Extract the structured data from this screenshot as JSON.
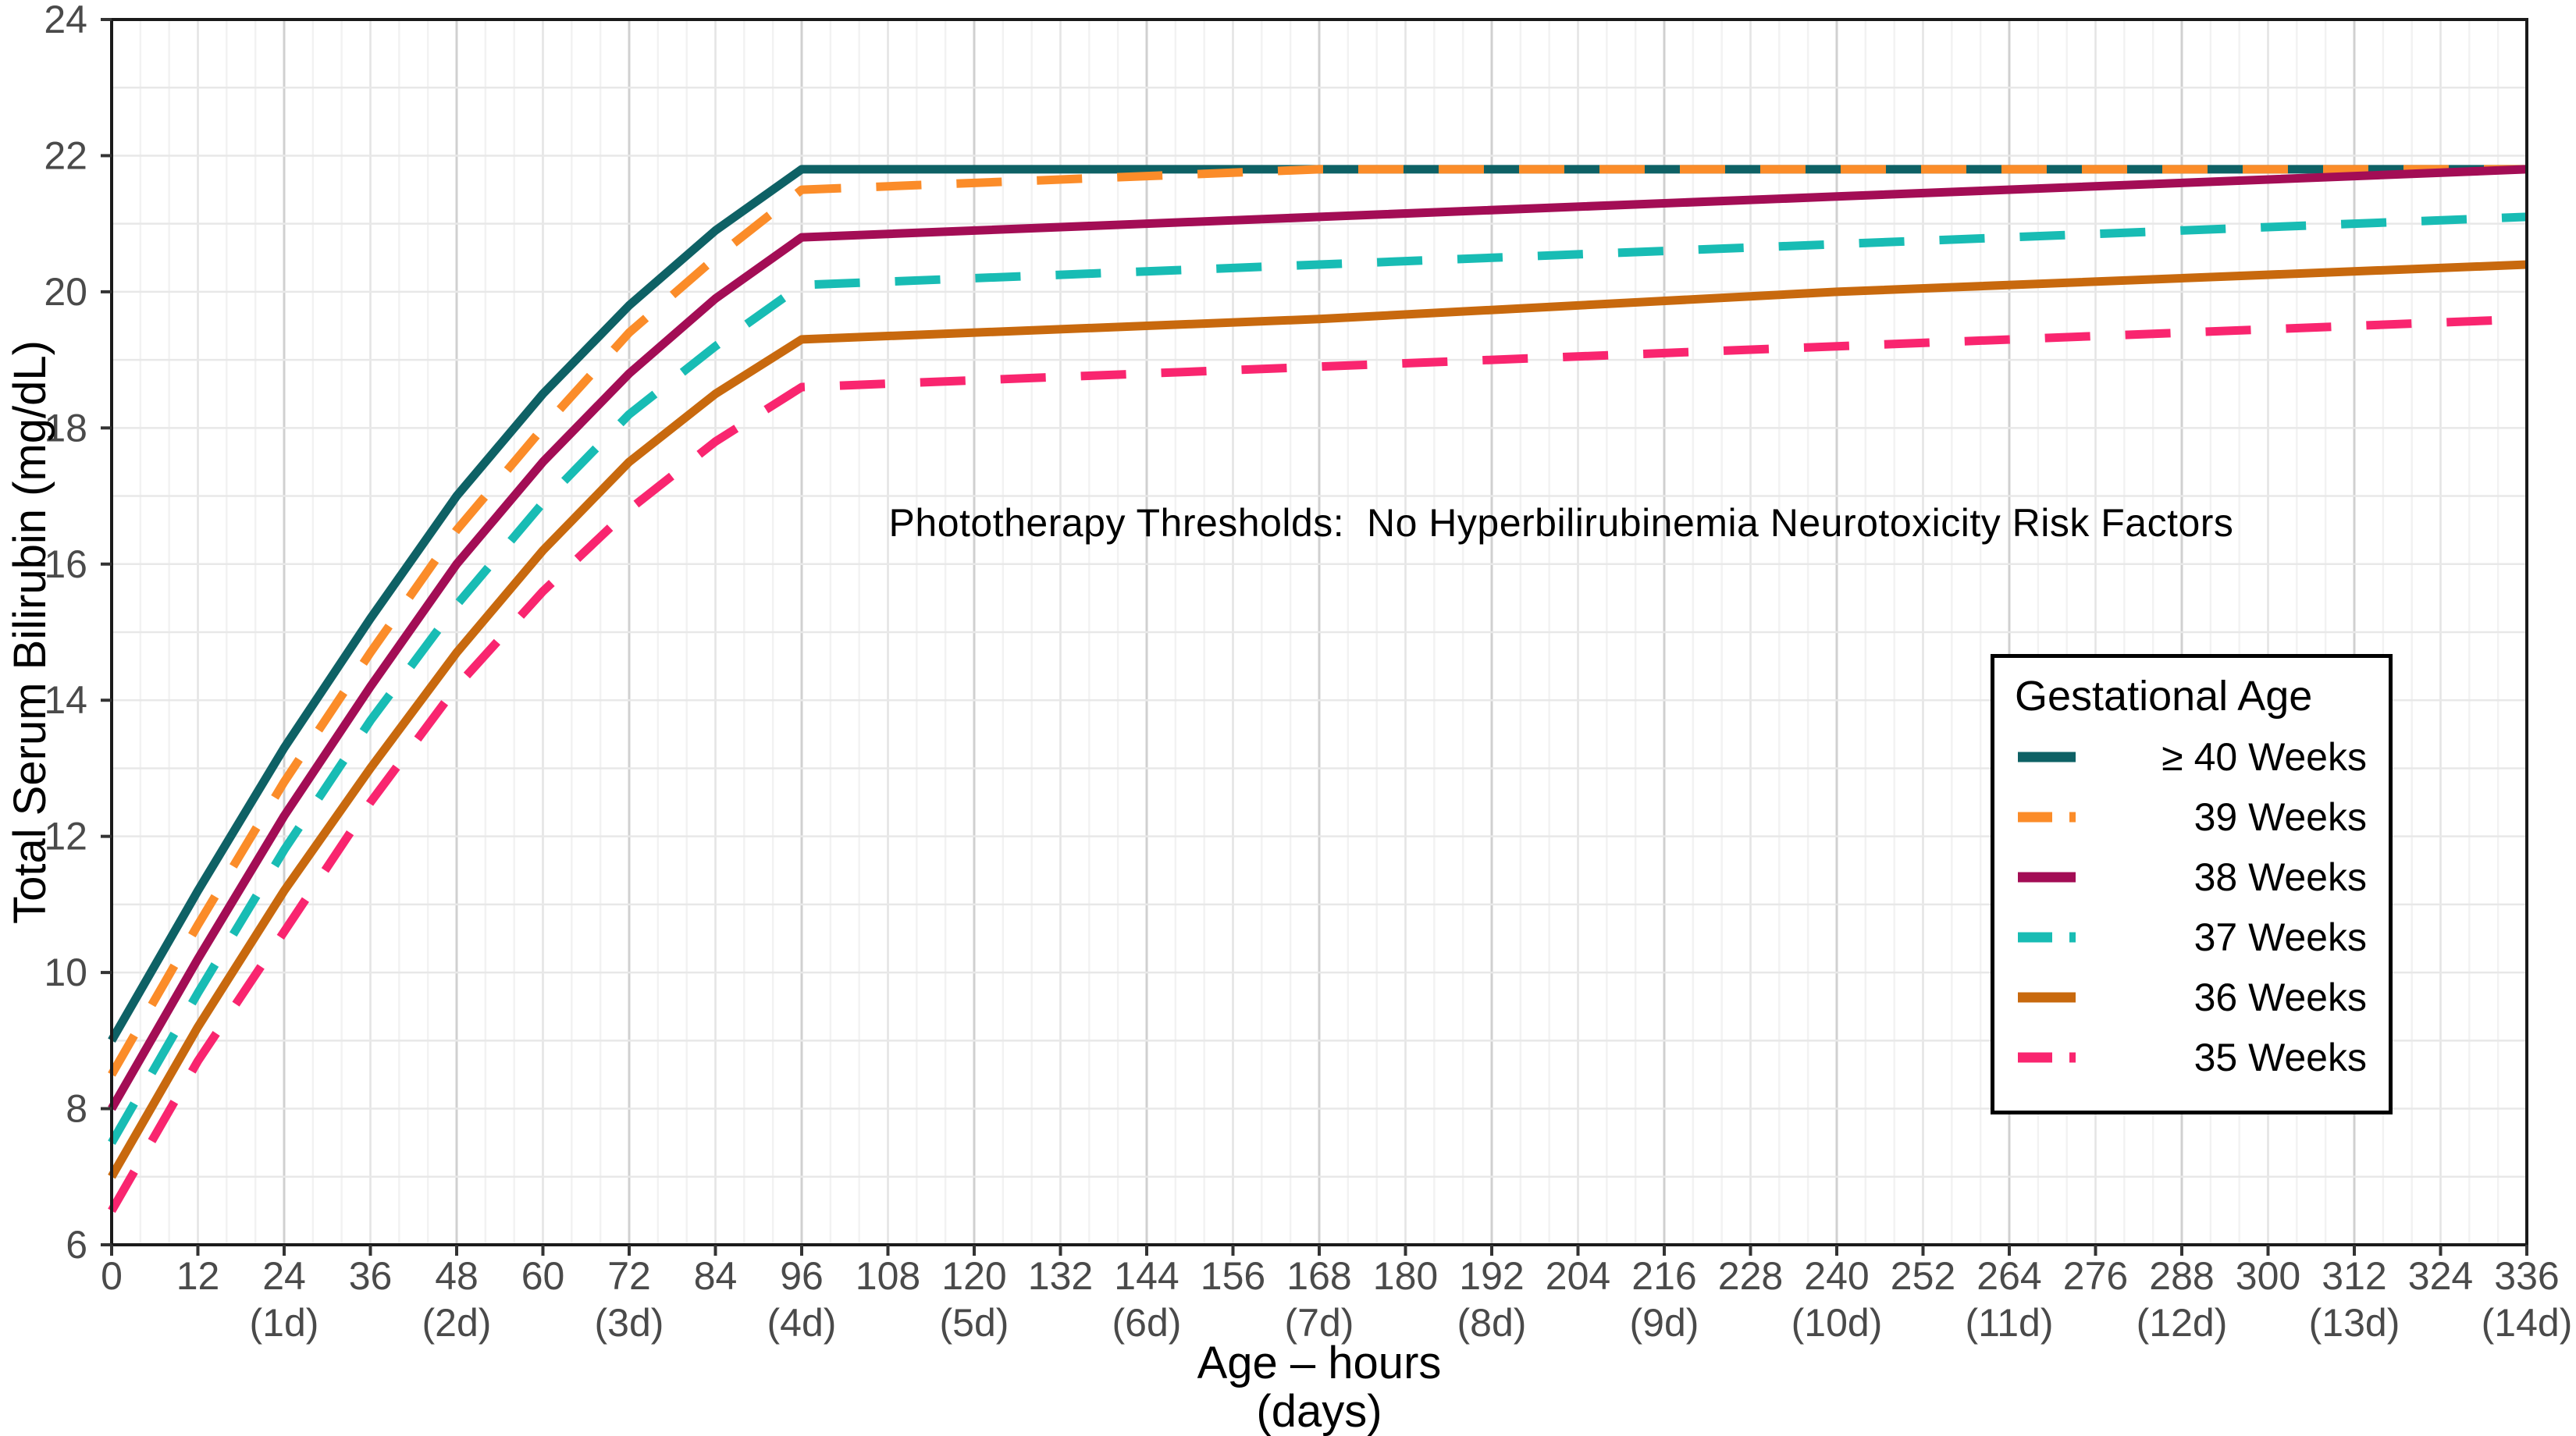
{
  "figure": {
    "background": "#ffffff"
  },
  "annotation": {
    "text": "Phototherapy Thresholds:  No Hyperbilirubinemia Neurotoxicity Risk Factors"
  },
  "legend": {
    "title": "Gestational Age",
    "items": [
      {
        "label": "≥ 40 Weeks",
        "color": "#0E6165",
        "dashed": false
      },
      {
        "label": "39 Weeks",
        "color": "#FB8C29",
        "dashed": true
      },
      {
        "label": "38 Weeks",
        "color": "#A30D55",
        "dashed": false
      },
      {
        "label": "37 Weeks",
        "color": "#18BCB4",
        "dashed": true
      },
      {
        "label": "36 Weeks",
        "color": "#C8690E",
        "dashed": false
      },
      {
        "label": "35 Weeks",
        "color": "#F9256F",
        "dashed": true
      }
    ]
  },
  "axes": {
    "x": {
      "title_line1": "Age – hours",
      "title_line2": "(days)",
      "tick_hours": [
        0,
        12,
        24,
        36,
        48,
        60,
        72,
        84,
        96,
        108,
        120,
        132,
        144,
        156,
        168,
        180,
        192,
        204,
        216,
        228,
        240,
        252,
        264,
        276,
        288,
        300,
        312,
        324,
        336
      ],
      "day_labels": [
        {
          "hour": 24,
          "label": "(1d)"
        },
        {
          "hour": 48,
          "label": "(2d)"
        },
        {
          "hour": 72,
          "label": "(3d)"
        },
        {
          "hour": 96,
          "label": "(4d)"
        },
        {
          "hour": 120,
          "label": "(5d)"
        },
        {
          "hour": 144,
          "label": "(6d)"
        },
        {
          "hour": 168,
          "label": "(7d)"
        },
        {
          "hour": 192,
          "label": "(8d)"
        },
        {
          "hour": 216,
          "label": "(9d)"
        },
        {
          "hour": 240,
          "label": "(10d)"
        },
        {
          "hour": 264,
          "label": "(11d)"
        },
        {
          "hour": 288,
          "label": "(12d)"
        },
        {
          "hour": 312,
          "label": "(13d)"
        },
        {
          "hour": 336,
          "label": "(14d)"
        }
      ]
    },
    "y": {
      "title": "Total Serum Bilirubin (mg/dL)",
      "tick_values": [
        6,
        8,
        10,
        12,
        14,
        16,
        18,
        20,
        22,
        24
      ]
    }
  },
  "chart_data": {
    "type": "line",
    "title": "Phototherapy Thresholds:  No Hyperbilirubinemia Neurotoxicity Risk Factors",
    "xlabel": "Age – hours (days)",
    "ylabel": "Total Serum Bilirubin (mg/dL)",
    "xlim": [
      0,
      336
    ],
    "ylim": [
      6,
      24
    ],
    "grid": {
      "x_minor_every_hours": 4,
      "x_labeled_every_hours": 12,
      "x_major_every_hours": 24,
      "y_every_mgdl": 1
    },
    "legend_position": "right-middle-inside",
    "colors": {
      "panel_border": "#1a1a1a",
      "tick": "#333333",
      "tick_label": "#4a4a4a",
      "grid_minor": "#F2F2F2",
      "grid_mid": "#E4E4E4",
      "grid_major": "#D0D0D0",
      "grid_horizontal": "#E8E8E8"
    },
    "series": [
      {
        "name": "≥ 40 Weeks",
        "color": "#0E6165",
        "dashed": false,
        "points": [
          [
            0,
            9.0
          ],
          [
            12,
            11.2
          ],
          [
            24,
            13.3
          ],
          [
            36,
            15.2
          ],
          [
            48,
            17.0
          ],
          [
            60,
            18.5
          ],
          [
            72,
            19.8
          ],
          [
            84,
            20.9
          ],
          [
            96,
            21.8
          ],
          [
            336,
            21.8
          ]
        ]
      },
      {
        "name": "39 Weeks",
        "color": "#FB8C29",
        "dashed": true,
        "points": [
          [
            0,
            8.5
          ],
          [
            12,
            10.7
          ],
          [
            24,
            12.8
          ],
          [
            36,
            14.7
          ],
          [
            48,
            16.5
          ],
          [
            60,
            18.0
          ],
          [
            72,
            19.4
          ],
          [
            84,
            20.5
          ],
          [
            96,
            21.5
          ],
          [
            168,
            21.8
          ],
          [
            336,
            21.8
          ]
        ]
      },
      {
        "name": "38 Weeks",
        "color": "#A30D55",
        "dashed": false,
        "points": [
          [
            0,
            8.0
          ],
          [
            12,
            10.2
          ],
          [
            24,
            12.3
          ],
          [
            36,
            14.2
          ],
          [
            48,
            16.0
          ],
          [
            60,
            17.5
          ],
          [
            72,
            18.8
          ],
          [
            84,
            19.9
          ],
          [
            96,
            20.8
          ],
          [
            168,
            21.1
          ],
          [
            240,
            21.4
          ],
          [
            336,
            21.8
          ]
        ]
      },
      {
        "name": "37 Weeks",
        "color": "#18BCB4",
        "dashed": true,
        "points": [
          [
            0,
            7.5
          ],
          [
            12,
            9.7
          ],
          [
            24,
            11.8
          ],
          [
            36,
            13.7
          ],
          [
            48,
            15.4
          ],
          [
            60,
            16.9
          ],
          [
            72,
            18.2
          ],
          [
            84,
            19.2
          ],
          [
            96,
            20.1
          ],
          [
            168,
            20.4
          ],
          [
            240,
            20.7
          ],
          [
            336,
            21.1
          ]
        ]
      },
      {
        "name": "36 Weeks",
        "color": "#C8690E",
        "dashed": false,
        "points": [
          [
            0,
            7.0
          ],
          [
            12,
            9.2
          ],
          [
            24,
            11.2
          ],
          [
            36,
            13.0
          ],
          [
            48,
            14.7
          ],
          [
            60,
            16.2
          ],
          [
            72,
            17.5
          ],
          [
            84,
            18.5
          ],
          [
            96,
            19.3
          ],
          [
            168,
            19.6
          ],
          [
            240,
            20.0
          ],
          [
            336,
            20.4
          ]
        ]
      },
      {
        "name": "35 Weeks",
        "color": "#F9256F",
        "dashed": true,
        "points": [
          [
            0,
            6.5
          ],
          [
            12,
            8.7
          ],
          [
            24,
            10.6
          ],
          [
            36,
            12.5
          ],
          [
            48,
            14.2
          ],
          [
            60,
            15.6
          ],
          [
            72,
            16.8
          ],
          [
            84,
            17.8
          ],
          [
            96,
            18.6
          ],
          [
            168,
            18.9
          ],
          [
            240,
            19.2
          ],
          [
            336,
            19.6
          ]
        ]
      }
    ]
  }
}
